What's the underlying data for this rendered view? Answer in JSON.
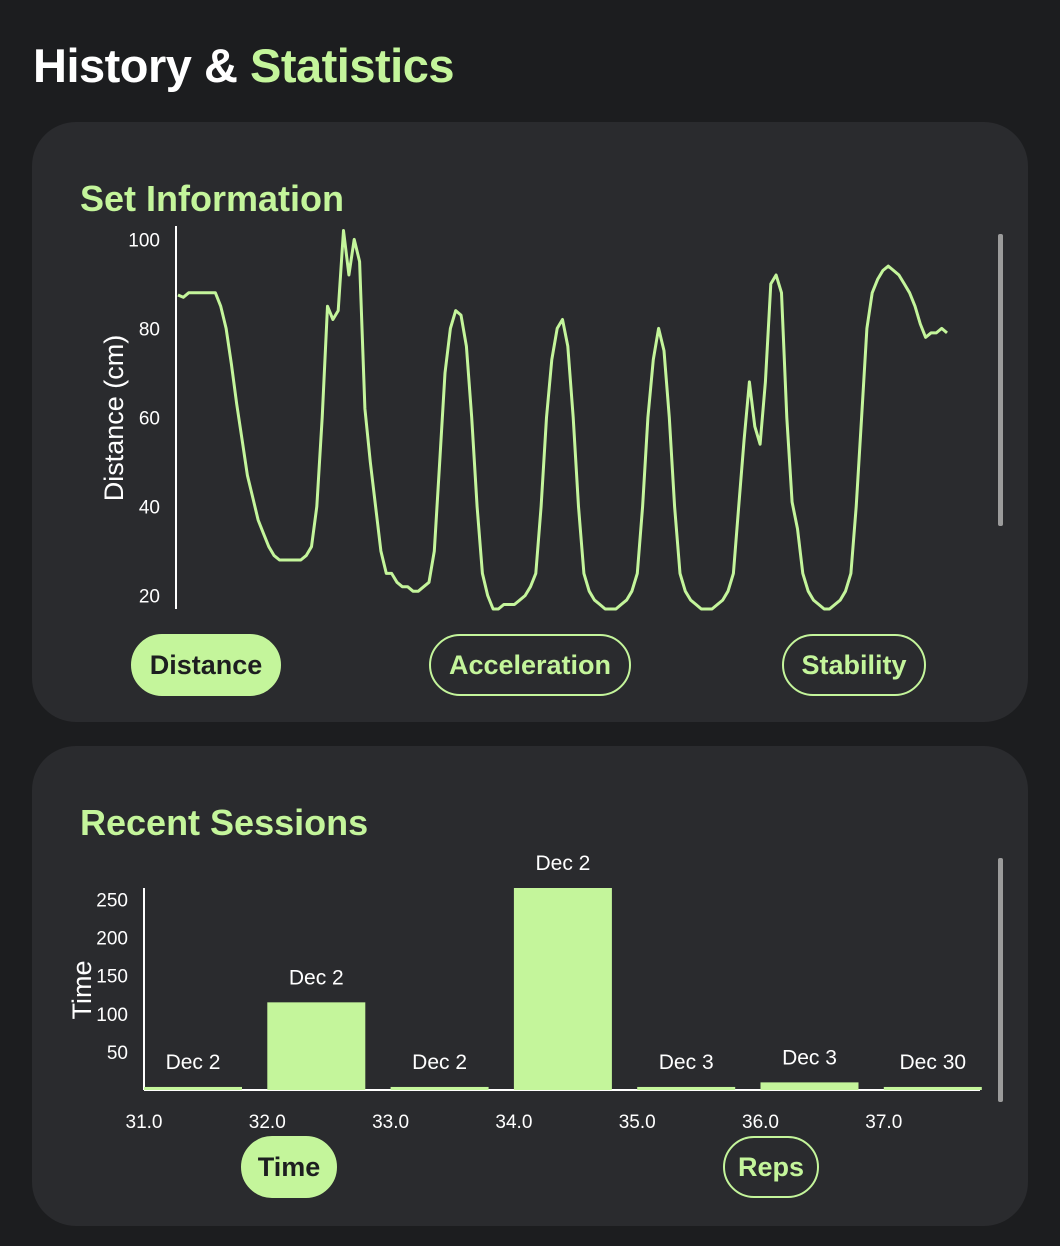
{
  "title": {
    "main": "History &",
    "accent": "Statistics"
  },
  "set_information": {
    "heading": "Set Information",
    "buttons": {
      "distance": "Distance",
      "acceleration": "Acceleration",
      "stability": "Stability"
    },
    "active": "distance"
  },
  "recent_sessions": {
    "heading": "Recent Sessions",
    "buttons": {
      "time": "Time",
      "reps": "Reps"
    },
    "active": "time"
  },
  "colors": {
    "accent": "#c4f59b",
    "card": "#2a2b2e",
    "background": "#1c1d1f"
  },
  "chart_data": [
    {
      "type": "line",
      "ylabel": "Distance (cm)",
      "xlabel": "",
      "ylim": [
        17,
        103
      ],
      "yticks": [
        20,
        40,
        60,
        80,
        100
      ],
      "series": [
        {
          "values": [
            87.5,
            87,
            88,
            88,
            88,
            88,
            88,
            88,
            85,
            80,
            72,
            63,
            55,
            47,
            42,
            37,
            34,
            31,
            29,
            28,
            28,
            28,
            28,
            28,
            29,
            31,
            40,
            60,
            85,
            82,
            84,
            102,
            92,
            100,
            95,
            62,
            50,
            40,
            30,
            25,
            25,
            23,
            22,
            22,
            21,
            21,
            22,
            23,
            30,
            50,
            70,
            80,
            84,
            83,
            76,
            60,
            40,
            25,
            20,
            17,
            17,
            18,
            18,
            18,
            19,
            20,
            22,
            25,
            40,
            60,
            73,
            80,
            82,
            76,
            60,
            40,
            25,
            21,
            19,
            18,
            17,
            17,
            17,
            18,
            19,
            21,
            25,
            40,
            60,
            73,
            80,
            75,
            60,
            40,
            25,
            21,
            19,
            18,
            17,
            17,
            17,
            18,
            19,
            21,
            25,
            40,
            55,
            68,
            58,
            54,
            68,
            90,
            92,
            88,
            60,
            41,
            35,
            25,
            21,
            19,
            18,
            17,
            17,
            18,
            19,
            21,
            25,
            40,
            60,
            80,
            88,
            91,
            93,
            94,
            93,
            92,
            90,
            88,
            85,
            81,
            78,
            79,
            79,
            80,
            79
          ]
        }
      ]
    },
    {
      "type": "bar",
      "ylabel": "Time",
      "xlabel": "",
      "ylim": [
        0,
        265
      ],
      "yticks": [
        50,
        100,
        150,
        200,
        250
      ],
      "xticks": [
        "31.0",
        "32.0",
        "33.0",
        "34.0",
        "35.0",
        "36.0",
        "37.0"
      ],
      "x": [
        31,
        32,
        33,
        34,
        35,
        36,
        37
      ],
      "categories": [
        "Dec 2",
        "Dec 2",
        "Dec 2",
        "Dec 2",
        "Dec 3",
        "Dec 3",
        "Dec 30"
      ],
      "values": [
        4,
        115,
        4,
        265,
        4,
        10,
        4
      ]
    }
  ]
}
